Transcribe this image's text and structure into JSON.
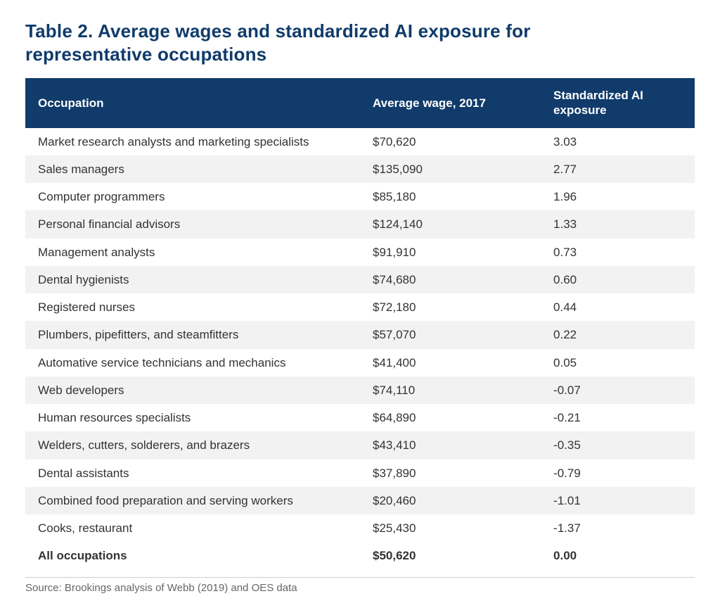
{
  "title": "Table 2. Average wages and standardized AI exposure for representative occupations",
  "table": {
    "type": "table",
    "header_bg": "#103b6b",
    "header_fg": "#ffffff",
    "row_bg_even": "#f2f2f2",
    "row_bg_odd": "#ffffff",
    "text_color": "#333333",
    "font_size_header": 17,
    "font_size_body": 17,
    "columns": [
      {
        "key": "occupation",
        "label": "Occupation",
        "width_pct": 50,
        "align": "left"
      },
      {
        "key": "wage",
        "label": "Average wage, 2017",
        "width_pct": 27,
        "align": "left"
      },
      {
        "key": "exposure",
        "label": "Standardized AI exposure",
        "width_pct": 23,
        "align": "left"
      }
    ],
    "rows": [
      {
        "occupation": "Market research analysts and marketing specialists",
        "wage": "$70,620",
        "exposure": "3.03"
      },
      {
        "occupation": "Sales managers",
        "wage": "$135,090",
        "exposure": "2.77"
      },
      {
        "occupation": "Computer programmers",
        "wage": "$85,180",
        "exposure": "1.96"
      },
      {
        "occupation": "Personal financial advisors",
        "wage": "$124,140",
        "exposure": "1.33"
      },
      {
        "occupation": "Management analysts",
        "wage": "$91,910",
        "exposure": "0.73"
      },
      {
        "occupation": "Dental hygienists",
        "wage": "$74,680",
        "exposure": "0.60"
      },
      {
        "occupation": "Registered nurses",
        "wage": "$72,180",
        "exposure": "0.44"
      },
      {
        "occupation": "Plumbers, pipefitters, and steamfitters",
        "wage": "$57,070",
        "exposure": "0.22"
      },
      {
        "occupation": "Automative service technicians and mechanics",
        "wage": "$41,400",
        "exposure": "0.05"
      },
      {
        "occupation": "Web developers",
        "wage": "$74,110",
        "exposure": "-0.07"
      },
      {
        "occupation": "Human resources specialists",
        "wage": "$64,890",
        "exposure": "-0.21"
      },
      {
        "occupation": "Welders, cutters, solderers, and brazers",
        "wage": "$43,410",
        "exposure": "-0.35"
      },
      {
        "occupation": "Dental assistants",
        "wage": "$37,890",
        "exposure": "-0.79"
      },
      {
        "occupation": "Combined food preparation and serving workers",
        "wage": "$20,460",
        "exposure": "-1.01"
      },
      {
        "occupation": "Cooks, restaurant",
        "wage": "$25,430",
        "exposure": "-1.37"
      }
    ],
    "total_row": {
      "occupation": "All occupations",
      "wage": "$50,620",
      "exposure": "0.00"
    }
  },
  "footnote": "Source: Brookings analysis of Webb (2019) and OES data",
  "footnote_color": "#666666",
  "footnote_rule_color": "#cfcfcf",
  "title_color": "#103b6b",
  "title_fontsize": 26,
  "background_color": "#ffffff"
}
